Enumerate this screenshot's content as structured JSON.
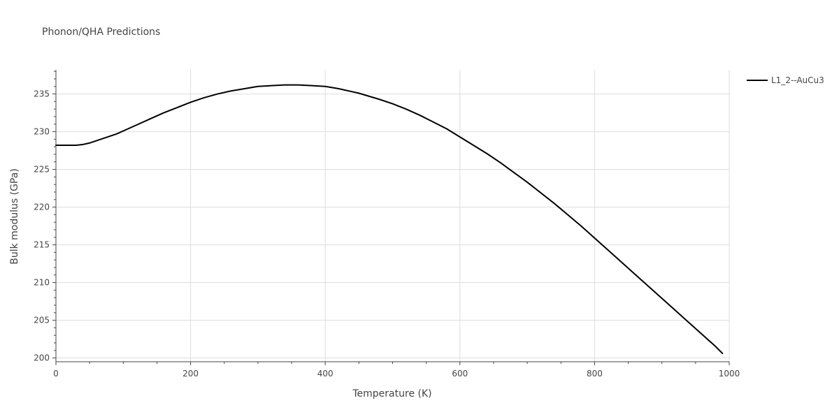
{
  "chart_data": {
    "type": "line",
    "title": "Phonon/QHA Predictions",
    "xlabel": "Temperature (K)",
    "ylabel": "Bulk modulus (GPa)",
    "xlim": [
      0,
      1000
    ],
    "ylim": [
      199.5,
      238.2
    ],
    "x_ticks": [
      0,
      200,
      400,
      600,
      800,
      1000
    ],
    "x_tick_labels": [
      "0",
      "200",
      "400",
      "600",
      "800",
      "1000"
    ],
    "y_ticks": [
      200,
      205,
      210,
      215,
      220,
      225,
      230,
      235
    ],
    "y_tick_labels": [
      "200",
      "205",
      "210",
      "215",
      "220",
      "225",
      "230",
      "235"
    ],
    "grid": true,
    "legend_position": "top-right",
    "series": [
      {
        "name": "L1_2--AuCu3",
        "color": "#000000",
        "x": [
          0,
          10,
          20,
          30,
          40,
          50,
          60,
          70,
          80,
          90,
          100,
          120,
          140,
          160,
          180,
          200,
          220,
          240,
          260,
          280,
          300,
          320,
          340,
          350,
          360,
          380,
          400,
          420,
          450,
          480,
          500,
          520,
          540,
          560,
          580,
          600,
          620,
          640,
          660,
          680,
          700,
          720,
          740,
          760,
          780,
          800,
          820,
          840,
          860,
          880,
          900,
          920,
          940,
          960,
          980,
          990
        ],
        "y": [
          228.2,
          228.2,
          228.2,
          228.2,
          228.3,
          228.5,
          228.8,
          229.1,
          229.4,
          229.7,
          230.1,
          230.9,
          231.7,
          232.5,
          233.2,
          233.9,
          234.5,
          235.0,
          235.4,
          235.7,
          236.0,
          236.1,
          236.2,
          236.2,
          236.2,
          236.1,
          236.0,
          235.7,
          235.1,
          234.3,
          233.7,
          233.0,
          232.2,
          231.3,
          230.4,
          229.3,
          228.2,
          227.1,
          225.9,
          224.6,
          223.3,
          221.9,
          220.5,
          219.0,
          217.5,
          215.9,
          214.3,
          212.7,
          211.1,
          209.5,
          207.9,
          206.3,
          204.7,
          203.1,
          201.5,
          200.6
        ]
      }
    ]
  }
}
